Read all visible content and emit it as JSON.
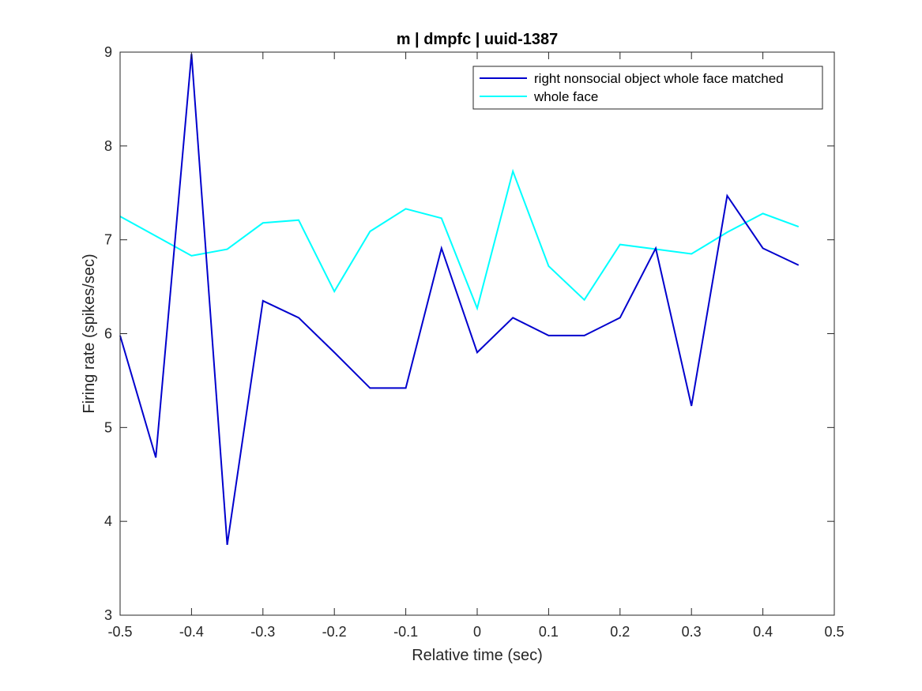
{
  "chart_data": {
    "type": "line",
    "title": "m | dmpfc | uuid-1387",
    "xlabel": "Relative time (sec)",
    "ylabel": "Firing rate (spikes/sec)",
    "xlim": [
      -0.5,
      0.5
    ],
    "ylim": [
      3,
      9
    ],
    "xticks": [
      -0.5,
      -0.4,
      -0.3,
      -0.2,
      -0.1,
      0,
      0.1,
      0.2,
      0.3,
      0.4,
      0.5
    ],
    "xtick_labels": [
      "-0.5",
      "-0.4",
      "-0.3",
      "-0.2",
      "-0.1",
      "0",
      "0.1",
      "0.2",
      "0.3",
      "0.4",
      "0.5"
    ],
    "yticks": [
      3,
      4,
      5,
      6,
      7,
      8,
      9
    ],
    "ytick_labels": [
      "3",
      "4",
      "5",
      "6",
      "7",
      "8",
      "9"
    ],
    "grid": false,
    "legend_position": "top-right",
    "x": [
      -0.5,
      -0.45,
      -0.4,
      -0.35,
      -0.3,
      -0.25,
      -0.2,
      -0.15,
      -0.1,
      -0.05,
      0,
      0.05,
      0.1,
      0.15,
      0.2,
      0.25,
      0.3,
      0.35,
      0.4,
      0.45
    ],
    "series": [
      {
        "name": "right nonsocial object whole face matched",
        "color": "#0000cd",
        "values": [
          5.98,
          4.68,
          8.98,
          3.75,
          6.35,
          6.17,
          5.8,
          5.42,
          5.42,
          6.91,
          5.8,
          6.17,
          5.98,
          5.98,
          6.17,
          6.91,
          5.23,
          7.47,
          6.91,
          6.73
        ]
      },
      {
        "name": "whole face",
        "color": "#00ffff",
        "values": [
          7.25,
          7.04,
          6.83,
          6.9,
          7.18,
          7.21,
          6.45,
          7.09,
          7.33,
          7.23,
          6.27,
          7.73,
          6.72,
          6.36,
          6.95,
          6.9,
          6.85,
          7.08,
          7.28,
          7.14
        ]
      }
    ]
  }
}
